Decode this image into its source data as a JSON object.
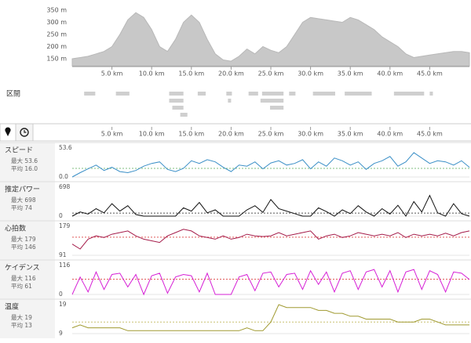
{
  "chart_data": [
    {
      "type": "area",
      "color": "#c8c8c8",
      "x": [
        0,
        1,
        2,
        3,
        4,
        5,
        6,
        7,
        8,
        9,
        10,
        11,
        12,
        13,
        14,
        15,
        16,
        17,
        18,
        19,
        20,
        21,
        22,
        23,
        24,
        25,
        26,
        27,
        28,
        29,
        30,
        31,
        32,
        33,
        34,
        35,
        36,
        37,
        38,
        39,
        40,
        41,
        42,
        43,
        44,
        45,
        46,
        47,
        48,
        49,
        50
      ],
      "values": [
        150,
        155,
        160,
        170,
        180,
        200,
        250,
        310,
        340,
        320,
        270,
        200,
        180,
        230,
        300,
        330,
        300,
        230,
        170,
        145,
        140,
        160,
        190,
        170,
        200,
        185,
        175,
        200,
        250,
        300,
        320,
        315,
        310,
        305,
        300,
        320,
        310,
        290,
        270,
        240,
        220,
        200,
        170,
        155,
        160,
        165,
        170,
        175,
        180,
        180,
        175
      ],
      "xlim": [
        0,
        50
      ],
      "xticks": [
        {
          "value": 5,
          "label": "5.0 km"
        },
        {
          "value": 10,
          "label": "10.0 km"
        },
        {
          "value": 15,
          "label": "15.0 km"
        },
        {
          "value": 20,
          "label": "20.0 km"
        },
        {
          "value": 25,
          "label": "25.0 km"
        },
        {
          "value": 30,
          "label": "30.0 km"
        },
        {
          "value": 35,
          "label": "35.0 km"
        },
        {
          "value": 40,
          "label": "40.0 km"
        },
        {
          "value": 45,
          "label": "45.0 km"
        }
      ],
      "ylim": [
        120,
        360
      ],
      "yticks": [
        {
          "value": 150,
          "label": "150 m"
        },
        {
          "value": 200,
          "label": "200 m"
        },
        {
          "value": 250,
          "label": "250 m"
        },
        {
          "value": 300,
          "label": "300 m"
        },
        {
          "value": 350,
          "label": "350 m"
        }
      ]
    },
    {
      "type": "line",
      "title": "スピード",
      "max_label": "最大 53.6",
      "avg_label": "平均 16.0",
      "color": "#3a8fc7",
      "average": 16.0,
      "avg_color": "#7fbf7f",
      "x": [
        0,
        1,
        2,
        3,
        4,
        5,
        6,
        7,
        8,
        9,
        10,
        11,
        12,
        13,
        14,
        15,
        16,
        17,
        18,
        19,
        20,
        21,
        22,
        23,
        24,
        25,
        26,
        27,
        28,
        29,
        30,
        31,
        32,
        33,
        34,
        35,
        36,
        37,
        38,
        39,
        40,
        41,
        42,
        43,
        44,
        45,
        46,
        47,
        48,
        49,
        50
      ],
      "values": [
        0,
        8,
        15,
        22,
        12,
        18,
        10,
        8,
        12,
        20,
        25,
        28,
        14,
        10,
        16,
        30,
        25,
        32,
        28,
        18,
        10,
        22,
        20,
        28,
        15,
        26,
        30,
        22,
        25,
        32,
        15,
        28,
        20,
        35,
        30,
        22,
        28,
        14,
        25,
        30,
        38,
        20,
        28,
        45,
        35,
        25,
        30,
        28,
        22,
        30,
        18
      ],
      "xlim": [
        0,
        50
      ],
      "ylim": [
        0,
        53.6
      ],
      "yticks": [
        {
          "value": 0,
          "label": "0.0"
        },
        53.6
      ]
    },
    {
      "type": "line",
      "title": "推定パワー",
      "max_label": "最大 698",
      "avg_label": "平均 74",
      "color": "#111111",
      "average": 74,
      "avg_color": "#555555",
      "x": [
        0,
        1,
        2,
        3,
        4,
        5,
        6,
        7,
        8,
        9,
        10,
        11,
        12,
        13,
        14,
        15,
        16,
        17,
        18,
        19,
        20,
        21,
        22,
        23,
        24,
        25,
        26,
        27,
        28,
        29,
        30,
        31,
        32,
        33,
        34,
        35,
        36,
        37,
        38,
        39,
        40,
        41,
        42,
        43,
        44,
        45,
        46,
        47,
        48,
        49,
        50
      ],
      "values": [
        0,
        100,
        50,
        180,
        80,
        300,
        120,
        250,
        40,
        0,
        0,
        0,
        0,
        0,
        200,
        120,
        330,
        80,
        150,
        0,
        0,
        0,
        150,
        250,
        90,
        400,
        180,
        120,
        60,
        0,
        0,
        200,
        110,
        0,
        150,
        60,
        250,
        100,
        0,
        180,
        50,
        260,
        0,
        350,
        100,
        500,
        80,
        0,
        300,
        60,
        0
      ],
      "xlim": [
        0,
        50
      ],
      "ylim": [
        0,
        698
      ],
      "yticks": [
        0,
        698
      ]
    },
    {
      "type": "line",
      "title": "心拍数",
      "max_label": "最大 179",
      "avg_label": "平均 146",
      "color": "#a51c4a",
      "average": 146,
      "avg_color": "#e05a5a",
      "x": [
        0,
        1,
        2,
        3,
        4,
        5,
        6,
        7,
        8,
        9,
        10,
        11,
        12,
        13,
        14,
        15,
        16,
        17,
        18,
        19,
        20,
        21,
        22,
        23,
        24,
        25,
        26,
        27,
        28,
        29,
        30,
        31,
        32,
        33,
        34,
        35,
        36,
        37,
        38,
        39,
        40,
        41,
        42,
        43,
        44,
        45,
        46,
        47,
        48,
        49,
        50
      ],
      "values": [
        125,
        110,
        140,
        150,
        145,
        155,
        160,
        165,
        150,
        140,
        135,
        130,
        150,
        160,
        170,
        165,
        150,
        145,
        140,
        150,
        140,
        145,
        155,
        150,
        148,
        150,
        160,
        150,
        155,
        160,
        165,
        140,
        150,
        155,
        145,
        150,
        160,
        155,
        150,
        155,
        150,
        160,
        145,
        155,
        150,
        155,
        150,
        158,
        150,
        160,
        165
      ],
      "xlim": [
        0,
        50
      ],
      "ylim": [
        91,
        179
      ],
      "yticks": [
        91,
        179
      ]
    },
    {
      "type": "line",
      "title": "ケイデンス",
      "max_label": "最大 116",
      "avg_label": "平均 61",
      "color": "#d620d6",
      "average": 61,
      "avg_color": "#e05a5a",
      "x": [
        0,
        1,
        2,
        3,
        4,
        5,
        6,
        7,
        8,
        9,
        10,
        11,
        12,
        13,
        14,
        15,
        16,
        17,
        18,
        19,
        20,
        21,
        22,
        23,
        24,
        25,
        26,
        27,
        28,
        29,
        30,
        31,
        32,
        33,
        34,
        35,
        36,
        37,
        38,
        39,
        40,
        41,
        42,
        43,
        44,
        45,
        46,
        47,
        48,
        49,
        50
      ],
      "values": [
        0,
        70,
        10,
        90,
        20,
        80,
        85,
        30,
        80,
        0,
        75,
        85,
        5,
        70,
        80,
        75,
        10,
        85,
        0,
        0,
        0,
        70,
        80,
        15,
        85,
        90,
        30,
        80,
        85,
        20,
        95,
        40,
        90,
        10,
        85,
        95,
        20,
        90,
        100,
        30,
        95,
        10,
        90,
        100,
        20,
        95,
        80,
        10,
        90,
        85,
        60
      ],
      "xlim": [
        0,
        50
      ],
      "ylim": [
        0,
        116
      ],
      "yticks": [
        0,
        116
      ]
    },
    {
      "type": "line",
      "title": "温度",
      "max_label": "最大 19",
      "avg_label": "平均 13",
      "color": "#a09a30",
      "average": 13,
      "avg_color": "#c8c070",
      "x": [
        0,
        1,
        2,
        3,
        4,
        5,
        6,
        7,
        8,
        9,
        10,
        11,
        12,
        13,
        14,
        15,
        16,
        17,
        18,
        19,
        20,
        21,
        22,
        23,
        24,
        25,
        26,
        27,
        28,
        29,
        30,
        31,
        32,
        33,
        34,
        35,
        36,
        37,
        38,
        39,
        40,
        41,
        42,
        43,
        44,
        45,
        46,
        47,
        48,
        49,
        50
      ],
      "values": [
        11,
        12,
        11,
        11,
        11,
        11,
        11,
        10,
        10,
        10,
        10,
        10,
        10,
        10,
        10,
        10,
        10,
        10,
        10,
        10,
        10,
        10,
        11,
        10,
        10,
        13,
        19,
        18,
        18,
        18,
        18,
        17,
        17,
        16,
        16,
        15,
        15,
        14,
        14,
        14,
        14,
        13,
        13,
        13,
        14,
        14,
        13,
        12,
        12,
        12,
        12
      ],
      "xlim": [
        0,
        50
      ],
      "ylim": [
        9,
        19
      ],
      "yticks": [
        9,
        19
      ]
    }
  ],
  "segments": {
    "label": "区間",
    "rows": [
      [
        [
          1.5,
          2.9
        ],
        [
          5.5,
          7.2
        ],
        [
          12.2,
          14.0
        ],
        [
          15.8,
          16.8
        ],
        [
          19.4,
          20.1
        ],
        [
          22.2,
          23.4
        ],
        [
          23.9,
          26.6
        ],
        [
          27.3,
          28.1
        ],
        [
          30.3,
          33.1
        ],
        [
          34.3,
          37.7
        ],
        [
          40.5,
          44.3
        ],
        [
          45.0,
          45.4
        ]
      ],
      [
        [
          12.2,
          14.0
        ],
        [
          19.6,
          20.0
        ],
        [
          23.7,
          26.6
        ]
      ],
      [
        [
          12.6,
          14.0
        ],
        [
          24.9,
          26.6
        ]
      ],
      [
        [
          13.6,
          14.5
        ]
      ]
    ]
  }
}
